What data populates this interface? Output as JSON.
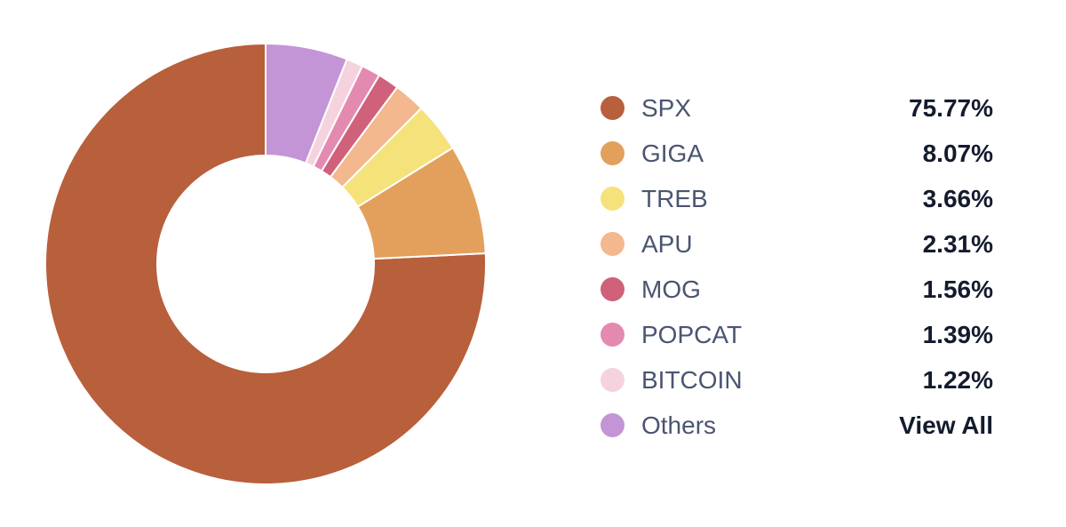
{
  "chart_data": {
    "type": "pie",
    "variant": "donut",
    "legend_position": "right",
    "slices": [
      {
        "label": "SPX",
        "value": 75.77,
        "value_label": "75.77%",
        "color": "#b85f3b"
      },
      {
        "label": "GIGA",
        "value": 8.07,
        "value_label": "8.07%",
        "color": "#e3a05d"
      },
      {
        "label": "TREB",
        "value": 3.66,
        "value_label": "3.66%",
        "color": "#f6e27a"
      },
      {
        "label": "APU",
        "value": 2.31,
        "value_label": "2.31%",
        "color": "#f3b88d"
      },
      {
        "label": "MOG",
        "value": 1.56,
        "value_label": "1.56%",
        "color": "#cf617a"
      },
      {
        "label": "POPCAT",
        "value": 1.39,
        "value_label": "1.39%",
        "color": "#e48ab0"
      },
      {
        "label": "BITCOIN",
        "value": 1.22,
        "value_label": "1.22%",
        "color": "#f5d3de"
      },
      {
        "label": "Others",
        "value": 6.02,
        "value_label": "View All",
        "color": "#c495d6"
      }
    ]
  }
}
